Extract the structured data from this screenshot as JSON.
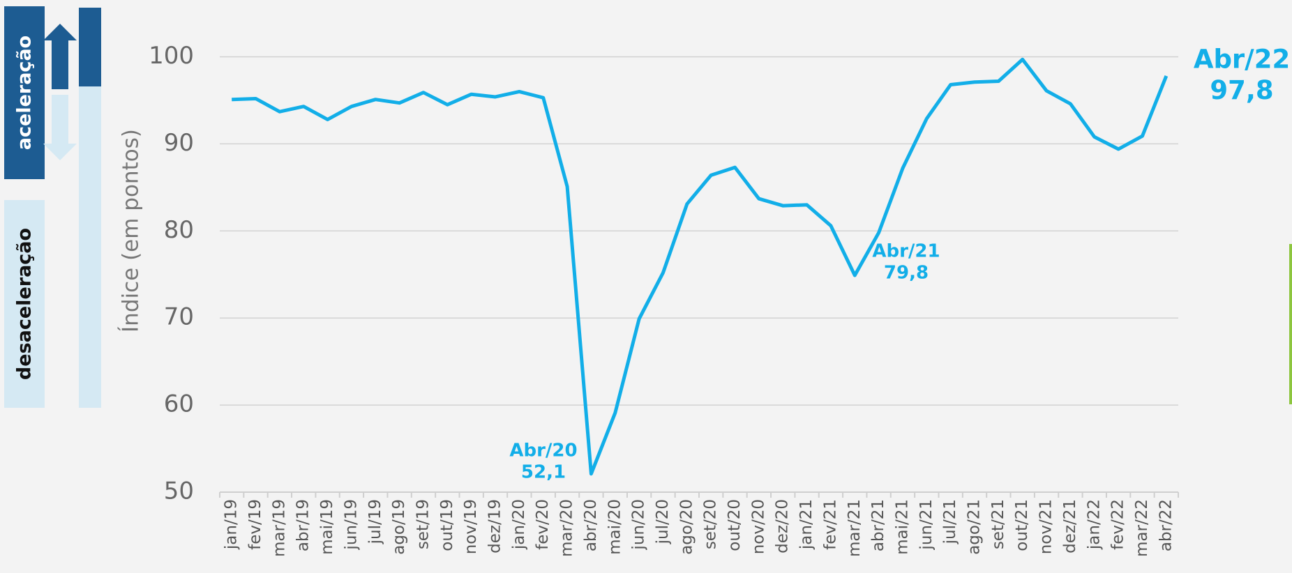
{
  "chart_data": {
    "type": "line",
    "y_axis_label": "Índice (em pontos)",
    "legend_labels": [
      "aceleração",
      "desaceleração"
    ],
    "categories": [
      "jan/19",
      "fev/19",
      "mar/19",
      "abr/19",
      "mai/19",
      "jun/19",
      "jul/19",
      "ago/19",
      "set/19",
      "out/19",
      "nov/19",
      "dez/19",
      "jan/20",
      "fev/20",
      "mar/20",
      "abr/20",
      "mai/20",
      "jun/20",
      "jul/20",
      "ago/20",
      "set/20",
      "out/20",
      "nov/20",
      "dez/20",
      "jan/21",
      "fev/21",
      "mar/21",
      "abr/21",
      "mai/21",
      "jun/21",
      "jul/21",
      "ago/21",
      "set/21",
      "out/21",
      "nov/21",
      "dez/21",
      "jan/22",
      "fev/22",
      "mar/22",
      "abr/22"
    ],
    "series": [
      {
        "name": "Índice",
        "color": "#12aee8",
        "values": [
          95.1,
          95.2,
          93.7,
          94.3,
          92.8,
          94.3,
          95.1,
          94.7,
          95.9,
          94.5,
          95.7,
          95.4,
          96.0,
          95.3,
          85.1,
          52.1,
          59.1,
          69.9,
          75.2,
          83.1,
          86.4,
          87.3,
          83.7,
          82.9,
          83.0,
          80.6,
          74.9,
          79.8,
          87.2,
          92.9,
          96.8,
          97.1,
          97.2,
          99.7,
          96.1,
          94.6,
          90.8,
          89.4,
          90.9,
          97.8
        ]
      }
    ],
    "annotations": [
      {
        "text": "Abr/20",
        "value_label": "52,1"
      },
      {
        "text": "Abr/21",
        "value_label": "79,8"
      },
      {
        "text": "Abr/22",
        "value_label": "97,8"
      }
    ],
    "ylim": [
      50,
      100
    ],
    "yticks": [
      50,
      60,
      70,
      80,
      90,
      100
    ],
    "grid": true
  }
}
